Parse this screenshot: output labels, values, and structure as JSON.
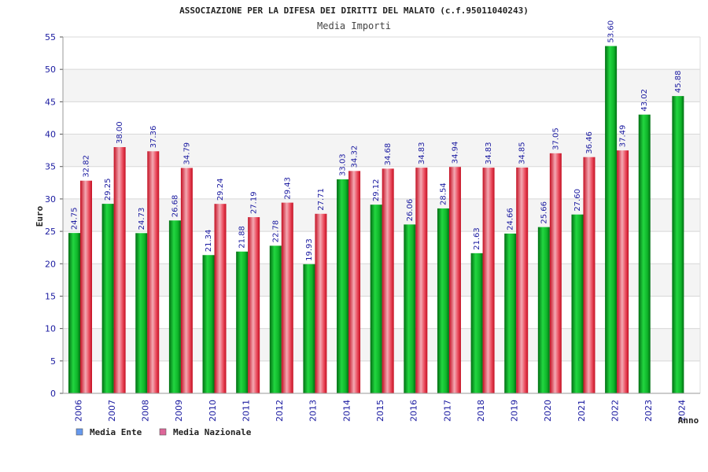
{
  "chart_data": {
    "type": "bar",
    "title": "ASSOCIAZIONE PER LA DIFESA DEI DIRITTI DEL MALATO (c.f.95011040243)",
    "subtitle": "Media Importi",
    "xlabel": "Anno",
    "ylabel": "Euro",
    "ylim": [
      0,
      55
    ],
    "yticks": [
      0,
      5,
      10,
      15,
      20,
      25,
      30,
      35,
      40,
      45,
      50,
      55
    ],
    "grid": true,
    "legend_position": "bottom-left",
    "categories": [
      "2006",
      "2007",
      "2008",
      "2009",
      "2010",
      "2011",
      "2012",
      "2013",
      "2014",
      "2015",
      "2016",
      "2017",
      "2018",
      "2019",
      "2020",
      "2021",
      "2022",
      "2023",
      "2024"
    ],
    "series": [
      {
        "name": "Media Ente",
        "color": "#00aa22",
        "values": [
          24.75,
          29.25,
          24.73,
          26.68,
          21.34,
          21.88,
          22.78,
          19.93,
          33.03,
          29.12,
          26.06,
          28.54,
          21.63,
          24.66,
          25.66,
          27.6,
          53.6,
          43.02,
          45.88
        ],
        "labels": [
          "24.75",
          "29.25",
          "24.73",
          "26.68",
          "21.34",
          "21.88",
          "22.78",
          "19.93",
          "33.03",
          "29.12",
          "26.06",
          "28.54",
          "21.63",
          "24.66",
          "25.66",
          "27.60",
          "53.60",
          "43.02",
          "45.88"
        ]
      },
      {
        "name": "Media Nazionale",
        "color": "#dd2233",
        "values": [
          32.82,
          38.0,
          37.36,
          34.79,
          29.24,
          27.19,
          29.43,
          27.71,
          34.32,
          34.68,
          34.83,
          34.94,
          34.83,
          34.85,
          37.05,
          36.46,
          37.49,
          null,
          null
        ],
        "labels": [
          "32.82",
          "38.00",
          "37.36",
          "34.79",
          "29.24",
          "27.19",
          "29.43",
          "27.71",
          "34.32",
          "34.68",
          "34.83",
          "34.94",
          "34.83",
          "34.85",
          "37.05",
          "36.46",
          "37.49",
          null,
          null
        ]
      }
    ],
    "legend": [
      {
        "name": "Media Ente",
        "swatch_color": "#6699ee"
      },
      {
        "name": "Media Nazionale",
        "swatch_color": "#dd6699"
      }
    ]
  }
}
